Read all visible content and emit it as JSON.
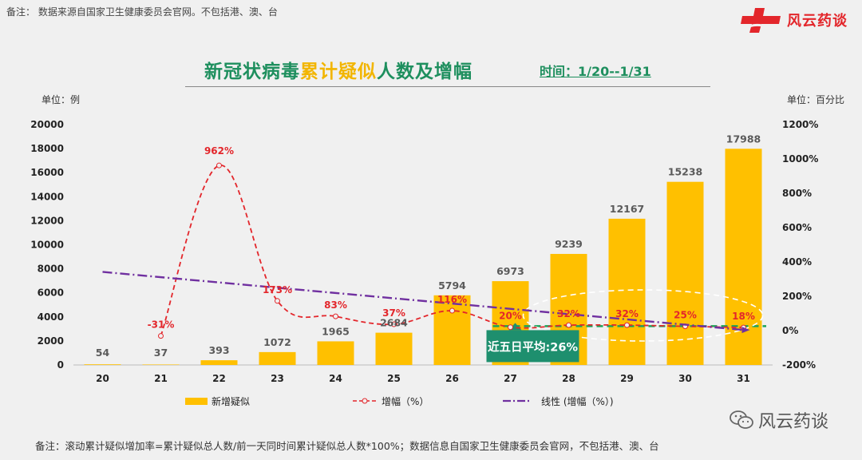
{
  "header": {
    "note_top": "备注：  数据来源自国家卫生健康委员会官网。不包括港、澳、台",
    "logo_text": "风云药谈"
  },
  "title": {
    "part1": "新冠状病毒",
    "part2": "累计疑似",
    "part3": "人数及增幅",
    "date_range": "时间：1/20--1/31"
  },
  "units": {
    "left": "单位：例",
    "right": "单位：百分比"
  },
  "annotation": {
    "avg_label": "近五日平均:26%"
  },
  "legend": {
    "bar": "新增疑似",
    "line": "增幅（%）",
    "trend": "线性 (增幅（%）)"
  },
  "footer": {
    "note": "备注：滚动累计疑似增加率=累计疑似总人数/前一天同时间累计疑似总人数*100%；数据信息自国家卫生健康委员会官网，不包括港、澳、台",
    "watermark": "风云药谈"
  },
  "colors": {
    "bar": "#ffc000",
    "line": "#e3262b",
    "trend": "#7030a0",
    "avg_line": "#1ba35a",
    "avg_box": "#1e8f6e",
    "ellipse": "#ffffff"
  },
  "chart_data": {
    "type": "bar",
    "categories": [
      "20",
      "21",
      "22",
      "23",
      "24",
      "25",
      "26",
      "27",
      "28",
      "29",
      "30",
      "31"
    ],
    "series": [
      {
        "name": "新增疑似",
        "type": "bar",
        "axis": "left",
        "values": [
          54,
          37,
          393,
          1072,
          1965,
          2684,
          5794,
          6973,
          9239,
          12167,
          15238,
          17988
        ],
        "labels": [
          "54",
          "37",
          "393",
          "1072",
          "1965",
          "2684",
          "5794",
          "6973",
          "9239",
          "12167",
          "15238",
          "17988"
        ]
      },
      {
        "name": "增幅（%）",
        "type": "line",
        "axis": "right",
        "values": [
          null,
          -31,
          962,
          173,
          83,
          37,
          116,
          20,
          32,
          32,
          25,
          18
        ],
        "labels": [
          "",
          "-31%",
          "962%",
          "173%",
          "83%",
          "37%",
          "116%",
          "20%",
          "32%",
          "32%",
          "25%",
          "18%"
        ]
      },
      {
        "name": "线性 (增幅（%）)",
        "type": "trendline",
        "axis": "right",
        "values": [
          342,
          311,
          281,
          250,
          219,
          188,
          158,
          127,
          96,
          65,
          34,
          4
        ]
      }
    ],
    "avg_line_value": 26,
    "y_left": {
      "min": 0,
      "max": 20000,
      "step": 2000,
      "ticks": [
        "0",
        "2000",
        "4000",
        "6000",
        "8000",
        "10000",
        "12000",
        "14000",
        "16000",
        "18000",
        "20000"
      ]
    },
    "y_right": {
      "min": -200,
      "max": 1200,
      "step": 200,
      "ticks": [
        "-200%",
        "0%",
        "200%",
        "400%",
        "600%",
        "800%",
        "1000%",
        "1200%"
      ]
    }
  }
}
